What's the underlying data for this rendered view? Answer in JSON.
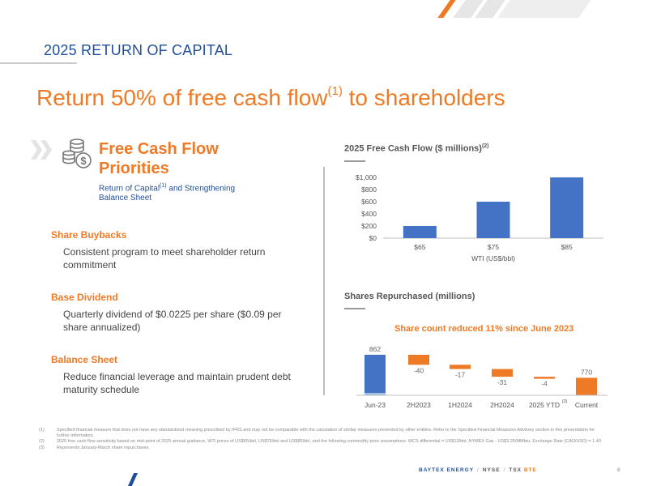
{
  "header": {
    "title": "2025 RETURN OF CAPITAL"
  },
  "headline": {
    "text": "Return 50% of free cash flow",
    "sup": "(1)",
    "suffix": " to shareholders"
  },
  "priorities": {
    "icon": "coins-dollar-icon",
    "title": "Free Cash Flow Priorities",
    "subtitle_a": "Return of Capital",
    "subtitle_sup": "(1)",
    "subtitle_b": " and Strengthening Balance Sheet"
  },
  "sections": [
    {
      "title": "Share Buybacks",
      "text": "Consistent program to meet shareholder return commitment"
    },
    {
      "title": "Base Dividend",
      "text": "Quarterly dividend of $0.0225 per share ($0.09 per share annualized)"
    },
    {
      "title": "Balance Sheet",
      "text": "Reduce financial leverage and maintain prudent debt maturity schedule"
    }
  ],
  "colors": {
    "blue": "#4472c4",
    "orange": "#ef7a26",
    "navy": "#1f4e9a",
    "light_blue": "#9dc3e6"
  },
  "chart_data": [
    {
      "type": "bar",
      "title": "2025 Free Cash Flow ($ millions)",
      "title_sup": "(2)",
      "categories": [
        "$65",
        "$75",
        "$85"
      ],
      "values": [
        200,
        600,
        1000
      ],
      "xlabel": "WTI (US$/bbl)",
      "ylabel": "",
      "ylim": [
        0,
        1000
      ],
      "yticks": [
        "$0",
        "$200",
        "$400",
        "$600",
        "$800",
        "$1,000"
      ],
      "grid": false
    },
    {
      "type": "bar",
      "subtype": "waterfall",
      "title": "Shares Repurchased (millions)",
      "subtitle": "Share count reduced 11% since June 2023",
      "categories": [
        "Jun-23",
        "2H2023",
        "1H2024",
        "2H2024",
        "2025 YTD",
        "Current"
      ],
      "category_sups": [
        "",
        "",
        "",
        "",
        "(3)",
        ""
      ],
      "values": [
        862,
        -40,
        -17,
        -31,
        -4,
        770
      ],
      "labels": [
        "862",
        "-40",
        "-17",
        "-31",
        "-4",
        "770"
      ],
      "kinds": [
        "total",
        "delta",
        "delta",
        "delta",
        "delta",
        "total"
      ]
    }
  ],
  "footnotes": [
    {
      "num": "(1)",
      "text": "Specified financial measure that does not have any standardized meaning prescribed by IFRS and may not be comparable with the calculation of similar measures presented by other entities. Refer to the Specified Financial Measures Advisory section in this presentation for further information."
    },
    {
      "num": "(2)",
      "text": "2025 free cash flow sensitivity based on mid-point of 2025 annual guidance, WTI prices of US$65/bbl, US$75/bbl and US$85/bbl, and the following commodity price assumptions: WCS differential = US$13/bbl; NYMEX Gas - US$3.25/MMbtu; Exchange Rate (CAD/USD) = 1.40."
    },
    {
      "num": "(3)",
      "text": "Represents January-March share repurchases."
    }
  ],
  "footer": {
    "brand": "BAYTEX ENERGY",
    "sep": "/",
    "nyse": "NYSE",
    "tsx": "TSX",
    "ticker": "BTE",
    "page": "8"
  }
}
